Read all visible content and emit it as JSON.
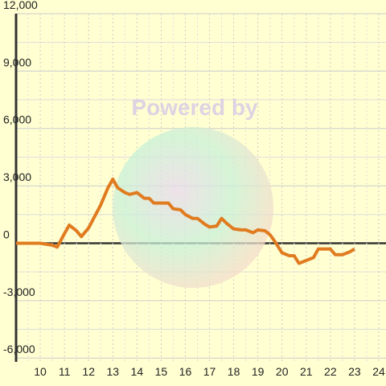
{
  "chart_data": {
    "type": "line",
    "watermark": "Powered by",
    "x": [
      9,
      10,
      10.5,
      10.7,
      11,
      11.2,
      11.5,
      11.7,
      12,
      12.5,
      12.8,
      13,
      13.2,
      13.5,
      13.7,
      14,
      14.3,
      14.5,
      14.7,
      15,
      15.3,
      15.5,
      15.8,
      16,
      16.3,
      16.5,
      16.8,
      17,
      17.3,
      17.5,
      17.7,
      18,
      18.3,
      18.5,
      18.8,
      19,
      19.3,
      19.5,
      19.7,
      20,
      20.3,
      20.5,
      20.7,
      21,
      21.3,
      21.5,
      21.8,
      22,
      22.2,
      22.5,
      22.8,
      23
    ],
    "series": [
      {
        "color": "#e07b20",
        "values": [
          0,
          0,
          -100,
          -200,
          500,
          950,
          650,
          350,
          800,
          2000,
          2900,
          3350,
          2900,
          2650,
          2550,
          2650,
          2350,
          2350,
          2100,
          2100,
          2100,
          1800,
          1750,
          1500,
          1300,
          1300,
          1000,
          850,
          900,
          1300,
          1050,
          750,
          700,
          700,
          550,
          700,
          650,
          450,
          100,
          -500,
          -650,
          -650,
          -1050,
          -900,
          -750,
          -300,
          -300,
          -300,
          -600,
          -600,
          -450,
          -300
        ]
      }
    ],
    "xlim": [
      9,
      24.3
    ],
    "xticks": [
      10,
      11,
      12,
      13,
      14,
      15,
      16,
      17,
      18,
      19,
      20,
      21,
      22,
      23,
      24
    ],
    "ylim": [
      -6200,
      12000
    ],
    "yticks": [
      {
        "value": -6000,
        "label": "-6,000"
      },
      {
        "value": -3000,
        "label": "-3,000"
      },
      0,
      {
        "value": 3000,
        "label": "3,000"
      },
      {
        "value": 6000,
        "label": "6,000"
      },
      {
        "value": 9000,
        "label": "9,000"
      },
      {
        "value": 12000,
        "label": "12,000"
      }
    ],
    "grid": true
  }
}
